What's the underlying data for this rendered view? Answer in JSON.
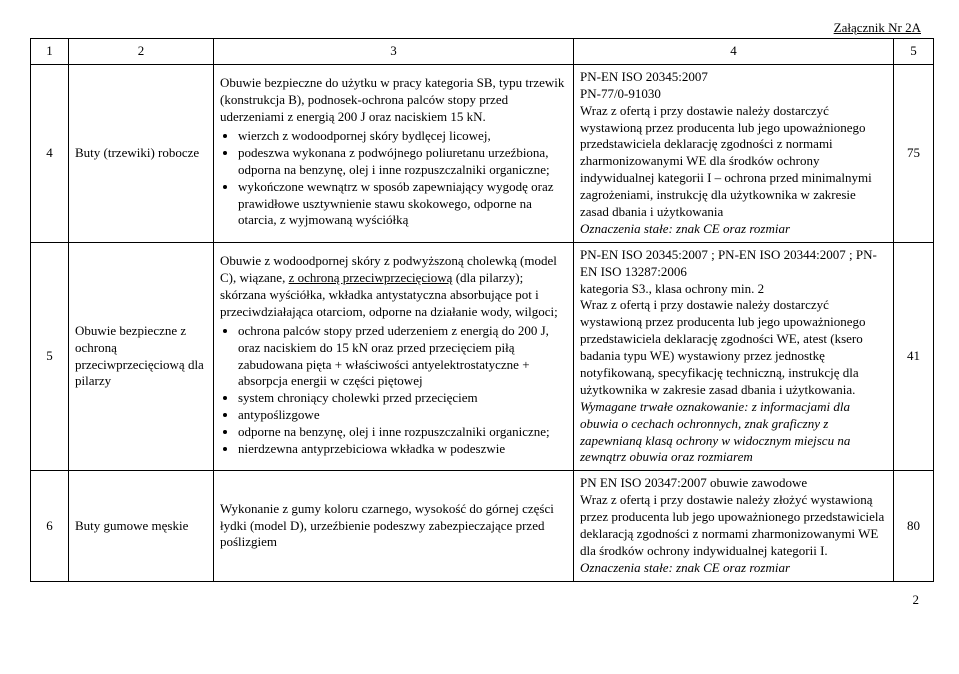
{
  "attachment_label": "Załącznik Nr 2A",
  "header": {
    "c1": "1",
    "c2": "2",
    "c3": "3",
    "c4": "4",
    "c5": "5"
  },
  "rows": [
    {
      "num": "4",
      "name": "Buty (trzewiki) robocze",
      "desc_intro": "Obuwie bezpieczne do użytku w pracy kategoria SB, typu trzewik (konstrukcja B), podnosek-ochrona palców stopy przed uderzeniami z energią 200 J oraz naciskiem 15 kN.",
      "desc_bullets": [
        "wierzch z wodoodpornej skóry bydlęcej licowej,",
        "podeszwa wykonana z podwójnego poliuretanu urzeźbiona, odporna na benzynę, olej i inne rozpuszczalniki organiczne;",
        "wykończone wewnątrz w sposób zapewniający wygodę oraz prawidłowe usztywnienie stawu skokowego, odporne na otarcia, z wyjmowaną wyściółką"
      ],
      "req_lines_pre": [
        "PN-EN ISO 20345:2007",
        "PN-77/0-91030",
        "Wraz z ofertą i przy dostawie należy dostarczyć wystawioną przez producenta lub jego upoważnionego przedstawiciela deklarację zgodności z normami zharmonizowanymi WE dla środków ochrony indywidualnej kategorii I – ochrona przed minimalnymi zagrożeniami, instrukcję dla użytkownika w zakresie zasad dbania i użytkowania"
      ],
      "req_italic": "Oznaczenia stałe: znak CE oraz rozmiar",
      "qty": "75"
    },
    {
      "num": "5",
      "name": "Obuwie bezpieczne z ochroną przeciwprzecięciową dla pilarzy",
      "desc_intro_pre": "Obuwie z wodoodpornej skóry z podwyższoną cholewką (model C), wiązane, ",
      "desc_intro_underline": "z ochroną przeciwprzecięciową",
      "desc_intro_post": " (dla pilarzy); skórzana wyściółka, wkładka antystatyczna absorbujące pot i przeciwdziałająca otarciom, odporne na działanie wody, wilgoci;",
      "desc_bullets": [
        "ochrona palców stopy przed uderzeniem z energią do 200 J, oraz naciskiem do 15 kN oraz przed przecięciem piłą zabudowana pięta + właściwości antyelektrostatyczne + absorpcja energii w części piętowej",
        "system chroniący cholewki przed przecięciem",
        "antypoślizgowe",
        "odporne na benzynę, olej i inne rozpuszczalniki organiczne;",
        "nierdzewna antyprzebiciowa wkładka w podeszwie"
      ],
      "req_lines_pre": [
        "PN-EN ISO 20345:2007 ; PN-EN ISO 20344:2007 ; PN-EN ISO 13287:2006",
        "kategoria S3., klasa ochrony min. 2",
        "Wraz z ofertą i przy dostawie należy dostarczyć wystawioną przez producenta lub jego upoważnionego przedstawiciela deklarację zgodności WE, atest (ksero badania typu WE) wystawiony przez jednostkę notyfikowaną, specyfikację techniczną, instrukcję dla użytkownika w zakresie zasad dbania i użytkowania."
      ],
      "req_italic": "Wymagane trwałe oznakowanie: z informacjami dla obuwia o cechach ochronnych, znak graficzny z zapewnianą klasą ochrony w widocznym miejscu na zewnątrz obuwia oraz rozmiarem",
      "qty": "41"
    },
    {
      "num": "6",
      "name": "Buty gumowe męskie",
      "desc_plain": "Wykonanie z gumy koloru czarnego, wysokość do górnej części łydki (model D), urzeźbienie podeszwy zabezpieczające przed poślizgiem",
      "req_lines_pre": [
        "PN EN ISO 20347:2007 obuwie zawodowe",
        "Wraz z ofertą i przy dostawie należy złożyć wystawioną przez producenta lub jego upoważnionego przedstawiciela deklaracją zgodności z normami zharmonizowanymi WE dla środków ochrony indywidualnej kategorii I."
      ],
      "req_italic": "Oznaczenia stałe: znak CE oraz rozmiar",
      "qty": "80"
    }
  ],
  "page_number": "2"
}
